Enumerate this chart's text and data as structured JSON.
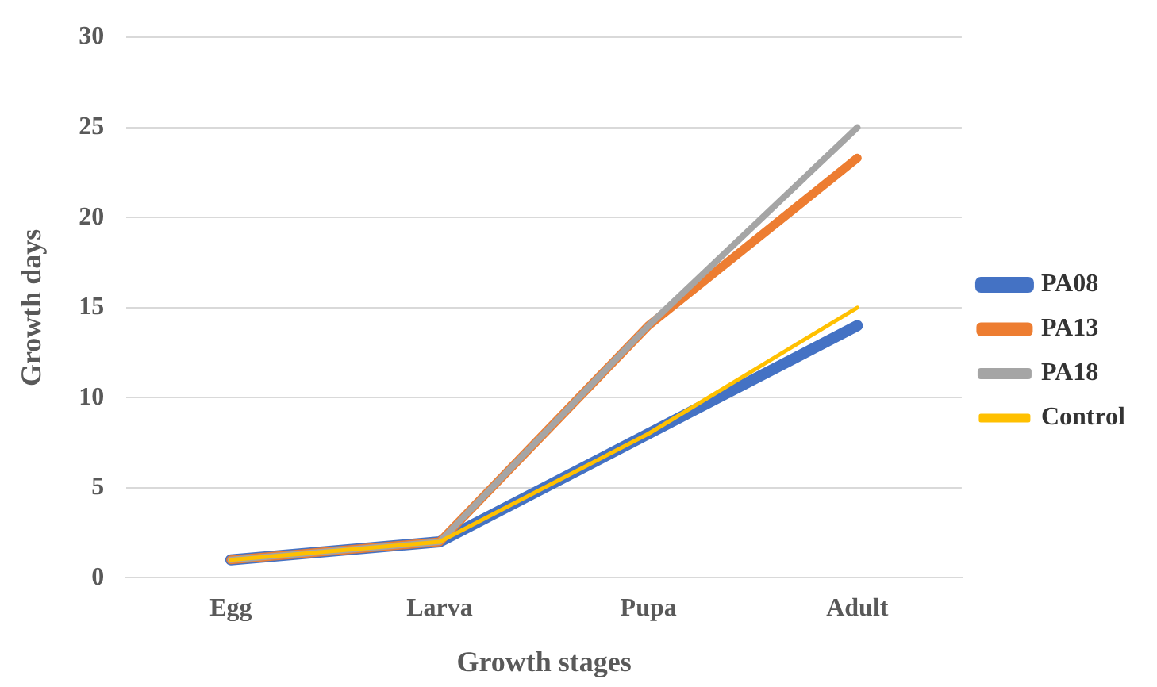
{
  "chart_data": {
    "type": "line",
    "xlabel": "Growth stages",
    "ylabel": "Growth days",
    "categories": [
      "Egg",
      "Larva",
      "Pupa",
      "Adult"
    ],
    "series": [
      {
        "name": "PA08",
        "color": "#4472c4",
        "values": [
          1,
          2,
          8,
          14
        ]
      },
      {
        "name": "PA13",
        "color": "#ed7d31",
        "values": [
          1,
          2,
          14,
          23.3
        ]
      },
      {
        "name": "PA18",
        "color": "#a5a5a5",
        "values": [
          1,
          2,
          14,
          25
        ]
      },
      {
        "name": "Control",
        "color": "#ffc000",
        "values": [
          1,
          2,
          8,
          15
        ]
      }
    ],
    "ylim": [
      0,
      30
    ],
    "yticks": [
      0,
      5,
      10,
      15,
      20,
      25,
      30
    ],
    "grid": "y",
    "legend": "right",
    "marker": "none",
    "line_style": "solid"
  }
}
